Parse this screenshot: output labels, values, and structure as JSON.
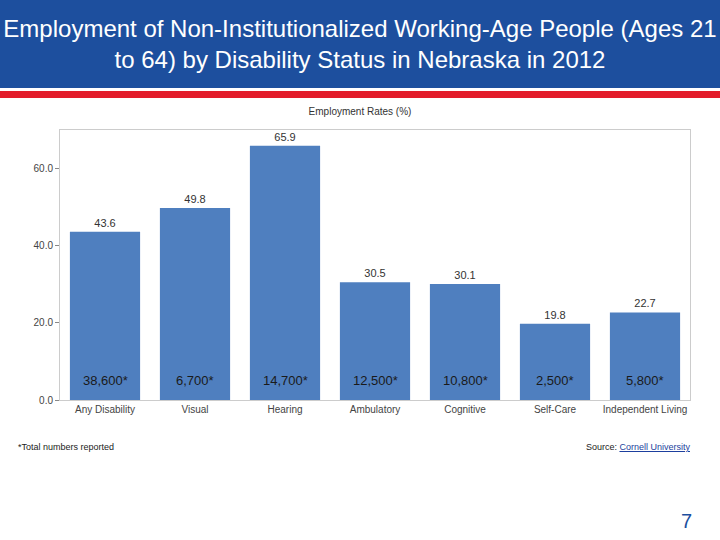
{
  "page": {
    "header": "Employment of Non-Institutionalized Working-Age People (Ages 21 to 64) by Disability Status in Nebraska in 2012",
    "footnote": "*Total numbers reported",
    "source_prefix": "Source: ",
    "source_link": "Cornell University",
    "page_number": "7"
  },
  "chart_data": {
    "type": "bar",
    "title": "Employment Rates (%)",
    "categories": [
      "Any Disability",
      "Visual",
      "Hearing",
      "Ambulatory",
      "Cognitive",
      "Self-Care",
      "Independent Living"
    ],
    "values": [
      43.6,
      49.8,
      65.9,
      30.5,
      30.1,
      19.8,
      22.7
    ],
    "color": "#4f7fbf",
    "total_labels": [
      "38,600*",
      "6,700*",
      "14,700*",
      "12,500*",
      "10,800*",
      "2,500*",
      "5,800*"
    ],
    "ylim": [
      0,
      70
    ],
    "yticks": [
      {
        "value": 0,
        "label": "0.0"
      },
      {
        "value": 20,
        "label": "20.0"
      },
      {
        "value": 40,
        "label": "40.0"
      },
      {
        "value": 60,
        "label": "60.0"
      }
    ],
    "grid": false,
    "data_labels": true
  }
}
